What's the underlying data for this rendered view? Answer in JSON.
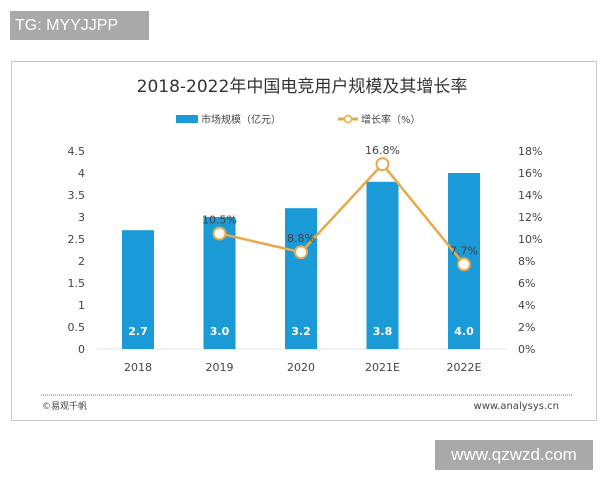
{
  "watermark_tag": "TG: MYYJJPP",
  "site_tag": "www.qzwzd.com",
  "footer": {
    "source": "©易观千帆",
    "url": "www.analysys.cn"
  },
  "colors": {
    "bar": "#1a9ad6",
    "line": "#e8a94a"
  },
  "chart_data": {
    "type": "bar+line",
    "title": "2018-2022年中国电竞用户规模及其增长率",
    "categories": [
      "2018",
      "2019",
      "2020",
      "2021E",
      "2022E"
    ],
    "legend_position": "top",
    "grid": false,
    "series": [
      {
        "name": "市场规模（亿元）",
        "type": "bar",
        "axis": "left",
        "values": [
          2.7,
          3.0,
          3.2,
          3.8,
          4.0
        ],
        "labels": [
          "2.7",
          "3.0",
          "3.2",
          "3.8",
          "4.0"
        ]
      },
      {
        "name": "增长率（%）",
        "type": "line",
        "axis": "right",
        "values": [
          null,
          10.5,
          8.8,
          16.8,
          7.7
        ],
        "labels": [
          "",
          "10.5%",
          "8.8%",
          "16.8%",
          "7.7%"
        ]
      }
    ],
    "y_left": {
      "range": [
        0,
        4.5
      ],
      "ticks": [
        "0",
        "0.5",
        "1",
        "1.5",
        "2",
        "2.5",
        "3",
        "3.5",
        "4",
        "4.5"
      ]
    },
    "y_right": {
      "range": [
        0,
        18
      ],
      "ticks": [
        "0%",
        "2%",
        "4%",
        "6%",
        "8%",
        "10%",
        "12%",
        "14%",
        "16%",
        "18%"
      ]
    }
  }
}
